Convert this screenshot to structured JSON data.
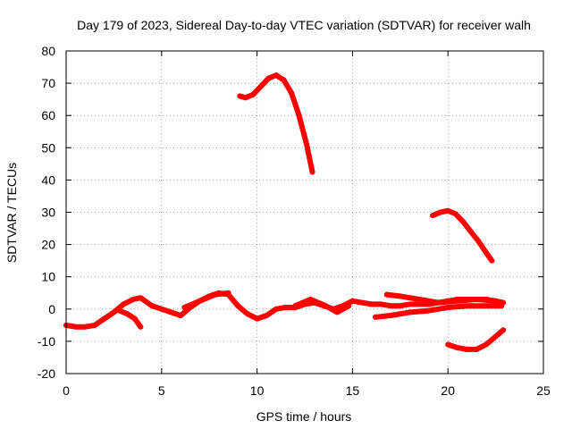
{
  "chart_data": {
    "type": "scatter",
    "title": "Day 179 of 2023, Sidereal Day-to-day VTEC variation (SDTVAR) for receiver walh",
    "xlabel": "GPS time / hours",
    "ylabel": "SDTVAR / TECUs",
    "xlim": [
      0,
      25
    ],
    "ylim": [
      -20,
      80
    ],
    "xticks": [
      0,
      5,
      10,
      15,
      20,
      25
    ],
    "yticks": [
      -20,
      -10,
      0,
      10,
      20,
      30,
      40,
      50,
      60,
      70,
      80
    ],
    "xtick_labels": [
      "0",
      "5",
      "10",
      "15",
      "20",
      "25"
    ],
    "ytick_labels": [
      "-20",
      "-10",
      "0",
      "10",
      "20",
      "30",
      "40",
      "50",
      "60",
      "70",
      "80"
    ],
    "grid": true,
    "legend": "none",
    "color": "#ff0000",
    "series": [
      {
        "name": "trace-1",
        "x": [
          0,
          0.5,
          1,
          1.5,
          2,
          2.5,
          3,
          3.5,
          3.9,
          4.5,
          5,
          5.5,
          6,
          6.5,
          7,
          7.5,
          8,
          8.5,
          9,
          9.5,
          10,
          10.5,
          11,
          11.5,
          12,
          12.5,
          13,
          13.5,
          14,
          14.5,
          15,
          15.5,
          16,
          16.5,
          17,
          17.5,
          18,
          18.5,
          19,
          19.5,
          20,
          20.5,
          21,
          21.5,
          22,
          22.5,
          22.9
        ],
        "y": [
          -5,
          -5.5,
          -5.5,
          -5,
          -3,
          -1,
          1.5,
          3,
          3.5,
          1,
          0,
          -1,
          -2,
          0.5,
          2.5,
          4,
          5,
          4.5,
          1,
          -1.5,
          -3,
          -2,
          0,
          0.5,
          0.5,
          1.5,
          2,
          1,
          0,
          1,
          2.5,
          2,
          1.5,
          1.5,
          1,
          1,
          1.5,
          1.5,
          1.5,
          2,
          2.5,
          3,
          3,
          3,
          3,
          2.5,
          2
        ]
      },
      {
        "name": "trace-2",
        "x": [
          2.8,
          3.2,
          3.6,
          3.9
        ],
        "y": [
          -0.5,
          -1.5,
          -3,
          -5.5
        ]
      },
      {
        "name": "trace-3",
        "x": [
          6.2,
          7,
          7.8,
          8.5
        ],
        "y": [
          0.5,
          2.5,
          4.5,
          5
        ]
      },
      {
        "name": "trace-4",
        "x": [
          12,
          12.8,
          13.6,
          14.2,
          14.8
        ],
        "y": [
          1,
          3,
          1,
          -1,
          1
        ]
      },
      {
        "name": "trace-5",
        "x": [
          16.2,
          17,
          18,
          19,
          20,
          21,
          22,
          22.8
        ],
        "y": [
          -2.5,
          -2,
          -1,
          -0.5,
          0.5,
          1,
          1,
          1
        ]
      },
      {
        "name": "trace-6",
        "x": [
          16.8,
          17.5,
          18.5,
          19.5,
          20.5,
          21.5,
          22.5
        ],
        "y": [
          4.5,
          4,
          3,
          2,
          2.5,
          3,
          2.5
        ]
      },
      {
        "name": "trace-7",
        "x": [
          9.1,
          9.4,
          9.8,
          10.2,
          10.6,
          11,
          11.4,
          11.8,
          12.2,
          12.6,
          12.9
        ],
        "y": [
          66,
          65.5,
          66.5,
          69,
          71.5,
          72.5,
          71,
          67,
          60,
          51,
          42.5
        ]
      },
      {
        "name": "trace-8",
        "x": [
          19.2,
          19.6,
          20,
          20.4,
          20.8,
          21.2,
          21.6,
          22,
          22.3
        ],
        "y": [
          29,
          30,
          30.5,
          29.5,
          27,
          24,
          21,
          17.5,
          15
        ]
      },
      {
        "name": "trace-9",
        "x": [
          20,
          20.5,
          21,
          21.5,
          22,
          22.5,
          22.9
        ],
        "y": [
          -11,
          -12,
          -12.5,
          -12.5,
          -11,
          -8.5,
          -6.5
        ]
      }
    ]
  }
}
